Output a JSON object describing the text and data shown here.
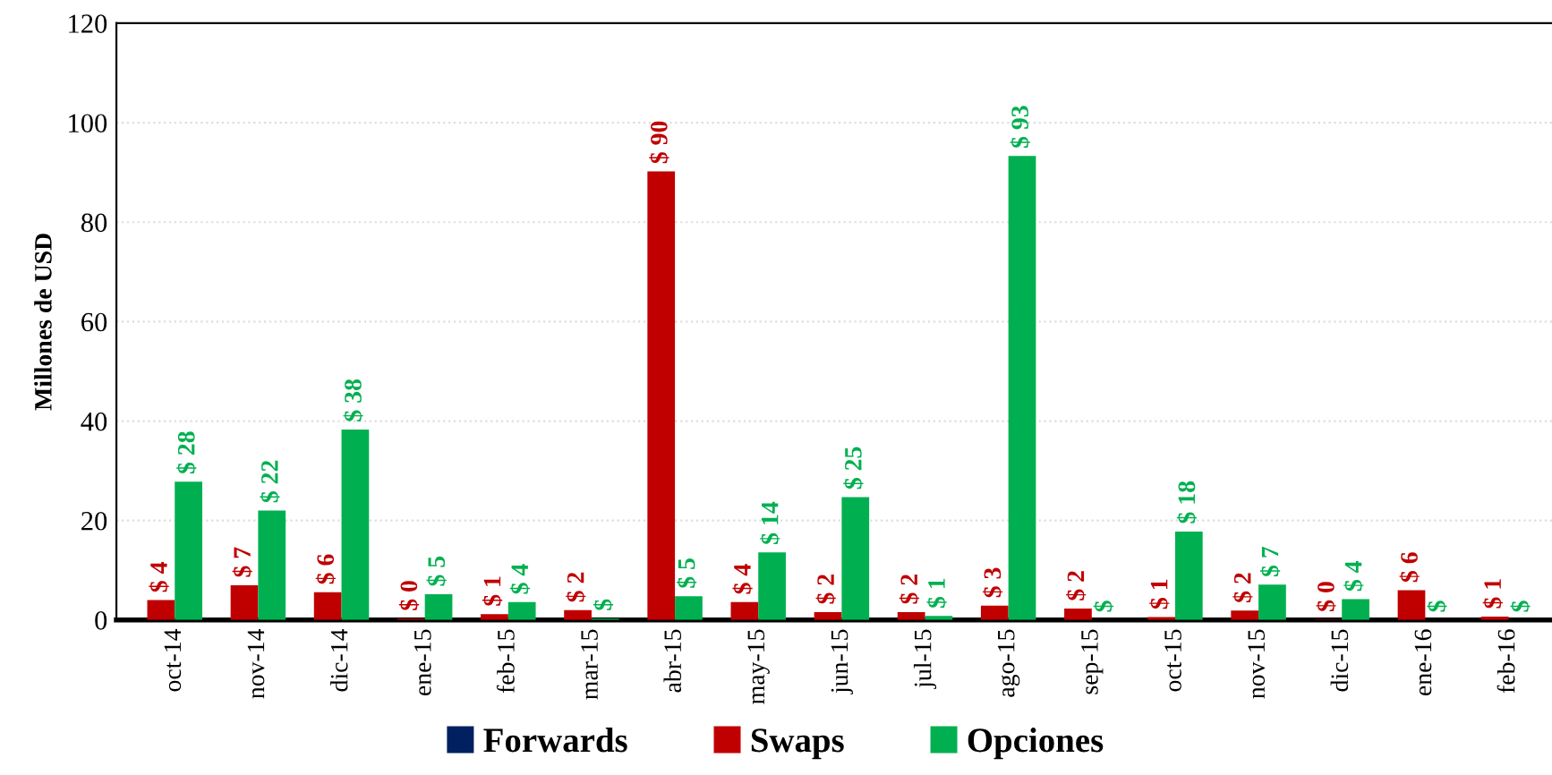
{
  "chart_data": {
    "type": "bar",
    "ylabel": "Millones de USD",
    "categories": [
      "oct-14",
      "nov-14",
      "dic-14",
      "ene-15",
      "feb-15",
      "mar-15",
      "abr-15",
      "may-15",
      "jun-15",
      "jul-15",
      "ago-15",
      "sep-15",
      "oct-15",
      "nov-15",
      "dic-15",
      "ene-16",
      "feb-16"
    ],
    "series": [
      {
        "name": "Forwards",
        "color": "#002060",
        "values": [
          null,
          null,
          null,
          null,
          null,
          null,
          null,
          null,
          null,
          null,
          null,
          null,
          null,
          null,
          null,
          null,
          null
        ]
      },
      {
        "name": "Swaps",
        "color": "#c00000",
        "values": [
          4.0,
          7.0,
          5.6,
          0.3,
          1.2,
          2.0,
          90.2,
          3.6,
          1.6,
          1.6,
          2.9,
          2.3,
          0.6,
          1.9,
          0.1,
          6.0,
          0.7
        ],
        "value_labels": [
          "$ 4",
          "$ 7",
          "$ 6",
          "$ 0",
          "$ 1",
          "$ 2",
          "$ 90",
          "$ 4",
          "$ 2",
          "$ 2",
          "$ 3",
          "$ 2",
          "$ 1",
          "$ 2",
          "$ 0",
          "$ 6",
          "$ 1"
        ]
      },
      {
        "name": "Opciones",
        "color": "#00b050",
        "values": [
          27.8,
          22.0,
          38.3,
          5.2,
          3.6,
          0.3,
          4.8,
          13.6,
          24.7,
          0.8,
          93.3,
          0,
          17.8,
          7.1,
          4.2,
          0,
          0
        ],
        "value_labels": [
          "$ 28",
          "$ 22",
          "$ 38",
          "$ 5",
          "$ 4",
          "$",
          "$ 5",
          "$ 14",
          "$ 25",
          "$ 1",
          "$ 93",
          "$",
          "$ 18",
          "$ 7",
          "$ 4",
          "$",
          "$"
        ]
      }
    ],
    "ylim": [
      0,
      120
    ],
    "yticks": [
      0,
      20,
      40,
      60,
      80,
      100,
      120
    ],
    "grid": "y",
    "legend": "bottom"
  }
}
